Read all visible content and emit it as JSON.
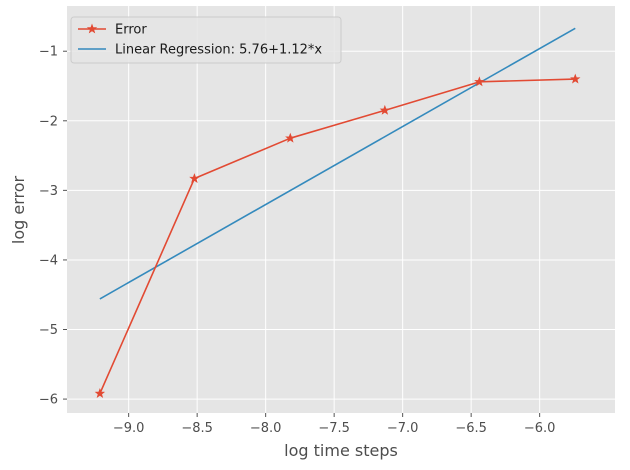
{
  "chart_data": {
    "type": "line",
    "title": "",
    "xlabel": "log time steps",
    "ylabel": "log error",
    "xlim": [
      -9.45,
      -5.45
    ],
    "ylim": [
      -6.2,
      -0.35
    ],
    "x_ticks": [
      -9.0,
      -8.5,
      -8.0,
      -7.5,
      -7.0,
      -6.5,
      -6.0
    ],
    "x_tick_labels": [
      "−9.0",
      "−8.5",
      "−8.0",
      "−7.5",
      "−7.0",
      "−6.5",
      "−6.0"
    ],
    "y_ticks": [
      -6,
      -5,
      -4,
      -3,
      -2,
      -1
    ],
    "y_tick_labels": [
      "−6",
      "−5",
      "−4",
      "−3",
      "−2",
      "−1"
    ],
    "grid": true,
    "legend_position": "top-left",
    "series": [
      {
        "name": "Error",
        "color": "#E24A33",
        "marker": "star",
        "x": [
          -9.21,
          -8.52,
          -7.82,
          -7.13,
          -6.44,
          -5.74
        ],
        "y": [
          -5.92,
          -2.83,
          -2.25,
          -1.85,
          -1.44,
          -1.4
        ]
      },
      {
        "name": "Linear Regression: 5.76+1.12*x",
        "color": "#348ABD",
        "marker": "none",
        "x": [
          -9.21,
          -5.74
        ],
        "y": [
          -4.56,
          -0.67
        ]
      }
    ]
  }
}
